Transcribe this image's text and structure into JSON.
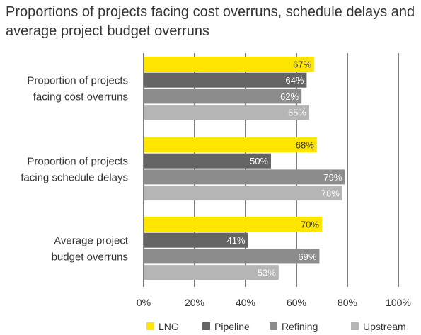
{
  "chart_data": {
    "type": "bar",
    "orientation": "horizontal",
    "title": "Proportions of projects facing cost overruns, schedule delays and average project budget overruns",
    "xlabel": "",
    "ylabel": "",
    "xlim": [
      0,
      100
    ],
    "x_ticks": [
      "0%",
      "20%",
      "40%",
      "60%",
      "80%",
      "100%"
    ],
    "grid": true,
    "legend_position": "bottom",
    "categories": [
      [
        "Proportion of projects",
        "facing cost overruns"
      ],
      [
        "Proportion of projects",
        "facing schedule delays"
      ],
      [
        "Average project",
        "budget overruns"
      ]
    ],
    "series": [
      {
        "name": "LNG",
        "color": "#ffe600",
        "label_color": "#333333",
        "values": [
          67,
          68,
          70
        ],
        "labels": [
          "67%",
          "68%",
          "70%"
        ]
      },
      {
        "name": "Pipeline",
        "color": "#646464",
        "label_color": "#ffffff",
        "values": [
          64,
          50,
          41
        ],
        "labels": [
          "64%",
          "50%",
          "41%"
        ]
      },
      {
        "name": "Refining",
        "color": "#8c8c8c",
        "label_color": "#ffffff",
        "values": [
          62,
          79,
          69
        ],
        "labels": [
          "62%",
          "79%",
          "69%"
        ]
      },
      {
        "name": "Upstream",
        "color": "#b5b5b5",
        "label_color": "#ffffff",
        "values": [
          65,
          78,
          53
        ],
        "labels": [
          "65%",
          "78%",
          "53%"
        ]
      }
    ]
  }
}
